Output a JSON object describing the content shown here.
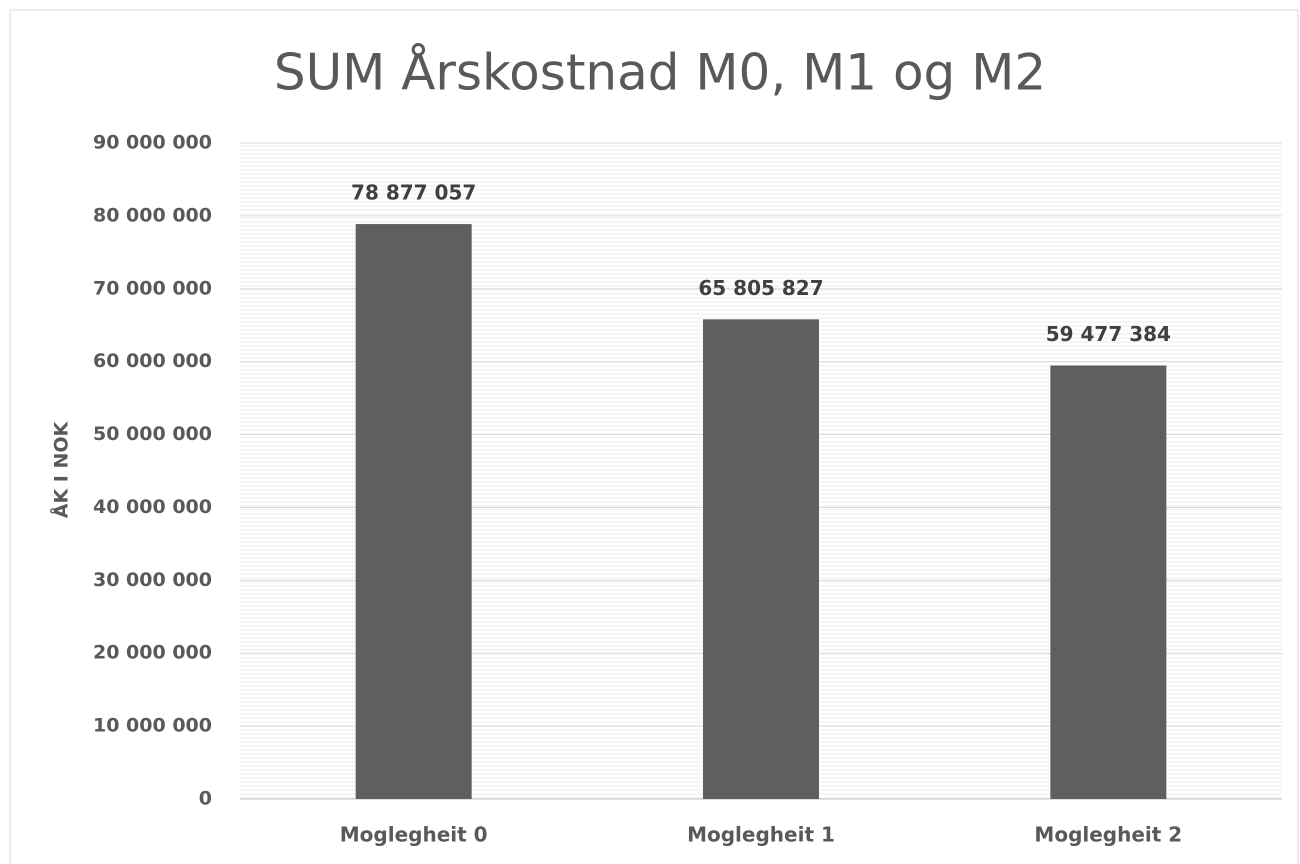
{
  "chart_data": {
    "type": "bar",
    "title": "SUM Årskostnad M0, M1 og M2",
    "y_label": "ÅK I NOK",
    "categories": [
      "Moglegheit 0",
      "Moglegheit 1",
      "Moglegheit 2"
    ],
    "values": [
      78877057,
      65805827,
      59477384
    ],
    "value_labels": [
      "78 877 057",
      "65 805 827",
      "59 477 384"
    ],
    "color": "#5f5f5f",
    "ylim": [
      0,
      90000000
    ],
    "yticks": [
      0,
      {
        "value": 10000000,
        "label": "10 000 000"
      },
      {
        "value": 20000000,
        "label": "20 000 000"
      },
      {
        "value": 30000000,
        "label": "30 000 000"
      },
      {
        "value": 40000000,
        "label": "40 000 000"
      },
      {
        "value": 50000000,
        "label": "50 000 000"
      },
      {
        "value": 60000000,
        "label": "60 000 000"
      },
      {
        "value": 70000000,
        "label": "70 000 000"
      },
      {
        "value": 80000000,
        "label": "80 000 000"
      },
      {
        "value": 90000000,
        "label": "90 000 000"
      }
    ],
    "grid": true
  }
}
